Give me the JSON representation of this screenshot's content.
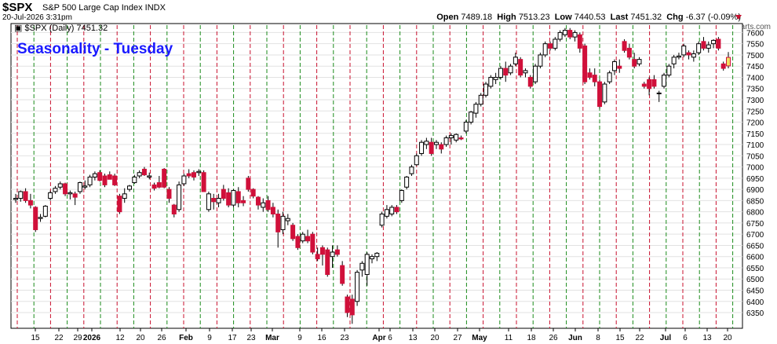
{
  "header": {
    "symbol": "$SPX",
    "name": "S&P 500 Large Cap Index INDX",
    "datetime": "20-Jul-2026 3:31pm",
    "open_label": "Open",
    "open": "7489.18",
    "high_label": "High",
    "high": "7513.23",
    "low_label": "Low",
    "low": "7440.53",
    "last_label": "Last",
    "last": "7451.32",
    "chg_label": "Chg",
    "chg": "-6.37 (-0.09%)",
    "credit": "© StockCharts.com"
  },
  "chart_data": {
    "type": "candlestick",
    "title": "Seasonality - Tuesday",
    "legend": "$SPX (Daily) 7451.32",
    "ylim": [
      6280,
      7640
    ],
    "yticks": [
      6350,
      6400,
      6450,
      6500,
      6550,
      6600,
      6650,
      6700,
      6750,
      6800,
      6850,
      6900,
      6950,
      7000,
      7050,
      7100,
      7150,
      7200,
      7250,
      7300,
      7350,
      7400,
      7450,
      7500,
      7550,
      7600
    ],
    "xticks": [
      "15",
      "22",
      "29",
      "2026",
      "12",
      "20",
      "26",
      "Feb",
      "9",
      "17",
      "23",
      "Mar",
      "9",
      "16",
      "23",
      "Apr",
      "6",
      "13",
      "20",
      "27",
      "May",
      "11",
      "18",
      "26",
      "Jun",
      "8",
      "15",
      "22",
      "Jul",
      "6",
      "13",
      "20"
    ],
    "grid": true,
    "colors": {
      "up": "#ffffff",
      "down": "#d0103a",
      "outline": "#000000",
      "red_line": "#c8102e",
      "green_line": "#1a8a1a",
      "title": "#1a1aff"
    },
    "candles": [
      {
        "o": 6855,
        "h": 6880,
        "l": 6840,
        "c": 6860
      },
      {
        "o": 6860,
        "h": 6895,
        "l": 6845,
        "c": 6890
      },
      {
        "o": 6890,
        "h": 6905,
        "l": 6840,
        "c": 6850
      },
      {
        "o": 6850,
        "h": 6880,
        "l": 6815,
        "c": 6830
      },
      {
        "o": 6820,
        "h": 6825,
        "l": 6710,
        "c": 6720
      },
      {
        "o": 6770,
        "h": 6790,
        "l": 6755,
        "c": 6775
      },
      {
        "o": 6780,
        "h": 6830,
        "l": 6775,
        "c": 6825
      },
      {
        "o": 6860,
        "h": 6895,
        "l": 6850,
        "c": 6885
      },
      {
        "o": 6890,
        "h": 6915,
        "l": 6880,
        "c": 6905
      },
      {
        "o": 6910,
        "h": 6935,
        "l": 6900,
        "c": 6925
      },
      {
        "o": 6925,
        "h": 6930,
        "l": 6870,
        "c": 6880
      },
      {
        "o": 6880,
        "h": 6895,
        "l": 6855,
        "c": 6885
      },
      {
        "o": 6880,
        "h": 6890,
        "l": 6830,
        "c": 6865
      },
      {
        "o": 6890,
        "h": 6935,
        "l": 6880,
        "c": 6930
      },
      {
        "o": 6910,
        "h": 6940,
        "l": 6900,
        "c": 6915
      },
      {
        "o": 6920,
        "h": 6965,
        "l": 6910,
        "c": 6955
      },
      {
        "o": 6955,
        "h": 6980,
        "l": 6940,
        "c": 6970
      },
      {
        "o": 6975,
        "h": 6985,
        "l": 6935,
        "c": 6940
      },
      {
        "o": 6960,
        "h": 6970,
        "l": 6910,
        "c": 6920
      },
      {
        "o": 6965,
        "h": 6980,
        "l": 6945,
        "c": 6945
      },
      {
        "o": 6960,
        "h": 6970,
        "l": 6915,
        "c": 6920
      },
      {
        "o": 6870,
        "h": 6880,
        "l": 6790,
        "c": 6800
      },
      {
        "o": 6860,
        "h": 6905,
        "l": 6840,
        "c": 6880
      },
      {
        "o": 6900,
        "h": 6920,
        "l": 6890,
        "c": 6915
      },
      {
        "o": 6930,
        "h": 6965,
        "l": 6925,
        "c": 6955
      },
      {
        "o": 6960,
        "h": 6985,
        "l": 6950,
        "c": 6975
      },
      {
        "o": 6990,
        "h": 7000,
        "l": 6960,
        "c": 6965
      },
      {
        "o": 6955,
        "h": 6975,
        "l": 6945,
        "c": 6960
      },
      {
        "o": 6920,
        "h": 6930,
        "l": 6895,
        "c": 6905
      },
      {
        "o": 6930,
        "h": 6960,
        "l": 6905,
        "c": 6910
      },
      {
        "o": 6990,
        "h": 6995,
        "l": 6905,
        "c": 6910
      },
      {
        "o": 6900,
        "h": 6910,
        "l": 6840,
        "c": 6860
      },
      {
        "o": 6830,
        "h": 6835,
        "l": 6775,
        "c": 6790
      },
      {
        "o": 6810,
        "h": 6935,
        "l": 6800,
        "c": 6920
      },
      {
        "o": 6925,
        "h": 6970,
        "l": 6915,
        "c": 6960
      },
      {
        "o": 6970,
        "h": 6990,
        "l": 6950,
        "c": 6960
      },
      {
        "o": 6975,
        "h": 6985,
        "l": 6940,
        "c": 6955
      },
      {
        "o": 6975,
        "h": 6990,
        "l": 6960,
        "c": 6980
      },
      {
        "o": 6975,
        "h": 6985,
        "l": 6890,
        "c": 6890
      },
      {
        "o": 6810,
        "h": 6890,
        "l": 6800,
        "c": 6880
      },
      {
        "o": 6860,
        "h": 6880,
        "l": 6810,
        "c": 6845
      },
      {
        "o": 6840,
        "h": 6880,
        "l": 6820,
        "c": 6860
      },
      {
        "o": 6900,
        "h": 6920,
        "l": 6850,
        "c": 6860
      },
      {
        "o": 6885,
        "h": 6905,
        "l": 6820,
        "c": 6830
      },
      {
        "o": 6830,
        "h": 6900,
        "l": 6820,
        "c": 6895
      },
      {
        "o": 6890,
        "h": 6910,
        "l": 6820,
        "c": 6840
      },
      {
        "o": 6850,
        "h": 6870,
        "l": 6825,
        "c": 6840
      },
      {
        "o": 6950,
        "h": 6960,
        "l": 6890,
        "c": 6900
      },
      {
        "o": 6900,
        "h": 6905,
        "l": 6860,
        "c": 6870
      },
      {
        "o": 6865,
        "h": 6870,
        "l": 6810,
        "c": 6830
      },
      {
        "o": 6820,
        "h": 6860,
        "l": 6800,
        "c": 6840
      },
      {
        "o": 6850,
        "h": 6870,
        "l": 6800,
        "c": 6810
      },
      {
        "o": 6820,
        "h": 6840,
        "l": 6775,
        "c": 6790
      },
      {
        "o": 6790,
        "h": 6810,
        "l": 6640,
        "c": 6710
      },
      {
        "o": 6720,
        "h": 6800,
        "l": 6700,
        "c": 6780
      },
      {
        "o": 6760,
        "h": 6790,
        "l": 6740,
        "c": 6770
      },
      {
        "o": 6740,
        "h": 6750,
        "l": 6670,
        "c": 6680
      },
      {
        "o": 6690,
        "h": 6700,
        "l": 6630,
        "c": 6640
      },
      {
        "o": 6670,
        "h": 6710,
        "l": 6660,
        "c": 6700
      },
      {
        "o": 6690,
        "h": 6720,
        "l": 6660,
        "c": 6670
      },
      {
        "o": 6700,
        "h": 6710,
        "l": 6610,
        "c": 6620
      },
      {
        "o": 6610,
        "h": 6640,
        "l": 6580,
        "c": 6590
      },
      {
        "o": 6640,
        "h": 6650,
        "l": 6560,
        "c": 6610
      },
      {
        "o": 6630,
        "h": 6640,
        "l": 6510,
        "c": 6520
      },
      {
        "o": 6600,
        "h": 6650,
        "l": 6550,
        "c": 6620
      },
      {
        "o": 6630,
        "h": 6650,
        "l": 6600,
        "c": 6610
      },
      {
        "o": 6560,
        "h": 6580,
        "l": 6470,
        "c": 6480
      },
      {
        "o": 6420,
        "h": 6430,
        "l": 6330,
        "c": 6350
      },
      {
        "o": 6410,
        "h": 6430,
        "l": 6300,
        "c": 6340
      },
      {
        "o": 6400,
        "h": 6540,
        "l": 6380,
        "c": 6530
      },
      {
        "o": 6540,
        "h": 6580,
        "l": 6510,
        "c": 6570
      },
      {
        "o": 6520,
        "h": 6620,
        "l": 6470,
        "c": 6610
      },
      {
        "o": 6590,
        "h": 6610,
        "l": 6570,
        "c": 6600
      },
      {
        "o": 6600,
        "h": 6620,
        "l": 6580,
        "c": 6615
      },
      {
        "o": 6740,
        "h": 6800,
        "l": 6730,
        "c": 6790
      },
      {
        "o": 6780,
        "h": 6830,
        "l": 6770,
        "c": 6810
      },
      {
        "o": 6790,
        "h": 6830,
        "l": 6780,
        "c": 6820
      },
      {
        "o": 6820,
        "h": 6830,
        "l": 6790,
        "c": 6800
      },
      {
        "o": 6850,
        "h": 6900,
        "l": 6840,
        "c": 6895
      },
      {
        "o": 6910,
        "h": 6960,
        "l": 6900,
        "c": 6955
      },
      {
        "o": 6970,
        "h": 7010,
        "l": 6960,
        "c": 7000
      },
      {
        "o": 7010,
        "h": 7060,
        "l": 7005,
        "c": 7050
      },
      {
        "o": 7060,
        "h": 7120,
        "l": 7050,
        "c": 7110
      },
      {
        "o": 7100,
        "h": 7130,
        "l": 7080,
        "c": 7115
      },
      {
        "o": 7110,
        "h": 7130,
        "l": 7050,
        "c": 7060
      },
      {
        "o": 7100,
        "h": 7120,
        "l": 7080,
        "c": 7110
      },
      {
        "o": 7100,
        "h": 7110,
        "l": 7060,
        "c": 7080
      },
      {
        "o": 7100,
        "h": 7140,
        "l": 7090,
        "c": 7130
      },
      {
        "o": 7130,
        "h": 7150,
        "l": 7100,
        "c": 7140
      },
      {
        "o": 7120,
        "h": 7150,
        "l": 7110,
        "c": 7145
      },
      {
        "o": 7130,
        "h": 7140,
        "l": 7120,
        "c": 7125
      },
      {
        "o": 7160,
        "h": 7210,
        "l": 7150,
        "c": 7200
      },
      {
        "o": 7200,
        "h": 7250,
        "l": 7190,
        "c": 7245
      },
      {
        "o": 7240,
        "h": 7290,
        "l": 7220,
        "c": 7280
      },
      {
        "o": 7280,
        "h": 7330,
        "l": 7270,
        "c": 7320
      },
      {
        "o": 7320,
        "h": 7380,
        "l": 7310,
        "c": 7370
      },
      {
        "o": 7360,
        "h": 7410,
        "l": 7350,
        "c": 7400
      },
      {
        "o": 7390,
        "h": 7420,
        "l": 7370,
        "c": 7400
      },
      {
        "o": 7400,
        "h": 7450,
        "l": 7390,
        "c": 7440
      },
      {
        "o": 7440,
        "h": 7470,
        "l": 7380,
        "c": 7410
      },
      {
        "o": 7420,
        "h": 7460,
        "l": 7410,
        "c": 7450
      },
      {
        "o": 7460,
        "h": 7510,
        "l": 7450,
        "c": 7490
      },
      {
        "o": 7480,
        "h": 7490,
        "l": 7400,
        "c": 7410
      },
      {
        "o": 7420,
        "h": 7440,
        "l": 7400,
        "c": 7430
      },
      {
        "o": 7400,
        "h": 7410,
        "l": 7350,
        "c": 7360
      },
      {
        "o": 7380,
        "h": 7460,
        "l": 7370,
        "c": 7450
      },
      {
        "o": 7450,
        "h": 7510,
        "l": 7440,
        "c": 7500
      },
      {
        "o": 7500,
        "h": 7560,
        "l": 7490,
        "c": 7550
      },
      {
        "o": 7550,
        "h": 7560,
        "l": 7520,
        "c": 7530
      },
      {
        "o": 7530,
        "h": 7580,
        "l": 7520,
        "c": 7570
      },
      {
        "o": 7570,
        "h": 7610,
        "l": 7560,
        "c": 7600
      },
      {
        "o": 7590,
        "h": 7620,
        "l": 7580,
        "c": 7610
      },
      {
        "o": 7610,
        "h": 7620,
        "l": 7570,
        "c": 7580
      },
      {
        "o": 7580,
        "h": 7610,
        "l": 7560,
        "c": 7600
      },
      {
        "o": 7590,
        "h": 7600,
        "l": 7510,
        "c": 7530
      },
      {
        "o": 7540,
        "h": 7550,
        "l": 7370,
        "c": 7380
      },
      {
        "o": 7420,
        "h": 7440,
        "l": 7390,
        "c": 7400
      },
      {
        "o": 7410,
        "h": 7440,
        "l": 7360,
        "c": 7380
      },
      {
        "o": 7380,
        "h": 7390,
        "l": 7260,
        "c": 7270
      },
      {
        "o": 7290,
        "h": 7380,
        "l": 7280,
        "c": 7370
      },
      {
        "o": 7380,
        "h": 7430,
        "l": 7370,
        "c": 7420
      },
      {
        "o": 7430,
        "h": 7480,
        "l": 7410,
        "c": 7470
      },
      {
        "o": 7450,
        "h": 7480,
        "l": 7420,
        "c": 7440
      },
      {
        "o": 7560,
        "h": 7570,
        "l": 7510,
        "c": 7520
      },
      {
        "o": 7530,
        "h": 7550,
        "l": 7480,
        "c": 7490
      },
      {
        "o": 7480,
        "h": 7510,
        "l": 7440,
        "c": 7450
      },
      {
        "o": 7460,
        "h": 7490,
        "l": 7450,
        "c": 7480
      },
      {
        "o": 7370,
        "h": 7380,
        "l": 7350,
        "c": 7360
      },
      {
        "o": 7390,
        "h": 7400,
        "l": 7320,
        "c": 7350
      },
      {
        "o": 7390,
        "h": 7410,
        "l": 7350,
        "c": 7360
      },
      {
        "o": 7330,
        "h": 7340,
        "l": 7290,
        "c": 7330
      },
      {
        "o": 7360,
        "h": 7420,
        "l": 7350,
        "c": 7410
      },
      {
        "o": 7410,
        "h": 7460,
        "l": 7400,
        "c": 7450
      },
      {
        "o": 7460,
        "h": 7500,
        "l": 7440,
        "c": 7490
      },
      {
        "o": 7490,
        "h": 7510,
        "l": 7480,
        "c": 7495
      },
      {
        "o": 7500,
        "h": 7550,
        "l": 7490,
        "c": 7540
      },
      {
        "o": 7510,
        "h": 7520,
        "l": 7480,
        "c": 7500
      },
      {
        "o": 7490,
        "h": 7520,
        "l": 7470,
        "c": 7505
      },
      {
        "o": 7510,
        "h": 7560,
        "l": 7500,
        "c": 7550
      },
      {
        "o": 7560,
        "h": 7580,
        "l": 7520,
        "c": 7530
      },
      {
        "o": 7530,
        "h": 7560,
        "l": 7510,
        "c": 7545
      },
      {
        "o": 7550,
        "h": 7570,
        "l": 7530,
        "c": 7565
      },
      {
        "o": 7570,
        "h": 7580,
        "l": 7520,
        "c": 7530
      },
      {
        "o": 7460,
        "h": 7470,
        "l": 7430,
        "c": 7440
      },
      {
        "o": 7489,
        "h": 7513,
        "l": 7440,
        "c": 7451
      }
    ]
  }
}
